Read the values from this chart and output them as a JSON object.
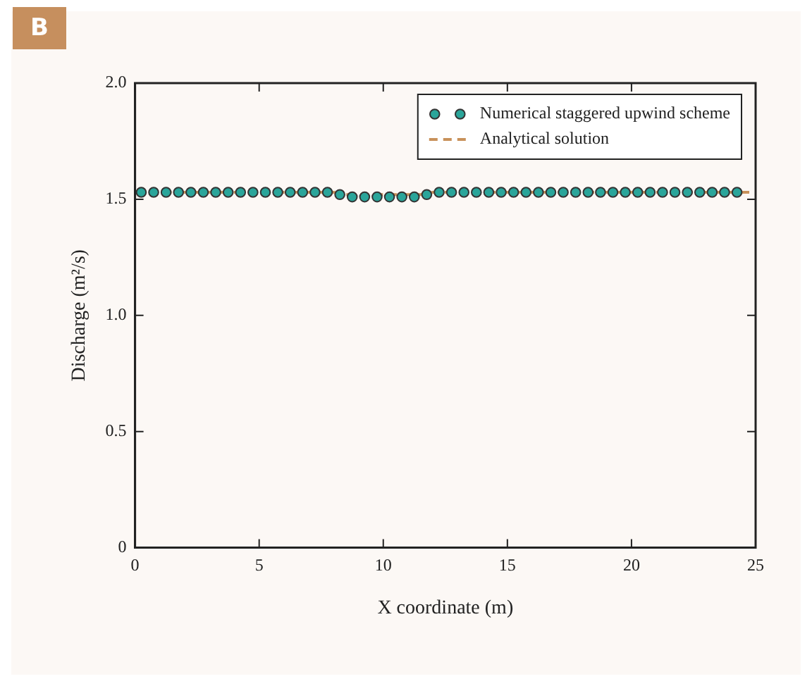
{
  "chart_data": {
    "type": "scatter",
    "xlabel": "X coordinate (m)",
    "ylabel": "Discharge (m²/s)",
    "annotations": [
      "B"
    ],
    "xlim": [
      0,
      25
    ],
    "xticks": [
      0,
      5,
      10,
      15,
      20,
      25
    ],
    "ylim": [
      0,
      2
    ],
    "yticks": [
      0,
      {
        "value": 0.5,
        "label": "0.5"
      },
      {
        "value": 1,
        "label": "1.0"
      },
      {
        "value": 1.5,
        "label": "1.5"
      },
      {
        "value": 2,
        "label": "2.0"
      }
    ],
    "grid": false,
    "legend": "top right",
    "series": [
      {
        "name": "Numerical staggered upwind scheme",
        "type": "scatter",
        "marker": "circle",
        "color": "#2aa59a",
        "x": [
          0.25,
          0.75,
          1.25,
          1.75,
          2.25,
          2.75,
          3.25,
          3.75,
          4.25,
          4.75,
          5.25,
          5.75,
          6.25,
          6.75,
          7.25,
          7.75,
          8.25,
          8.75,
          9.25,
          9.75,
          10.25,
          10.75,
          11.25,
          11.75,
          12.25,
          12.75,
          13.25,
          13.75,
          14.25,
          14.75,
          15.25,
          15.75,
          16.25,
          16.75,
          17.25,
          17.75,
          18.25,
          18.75,
          19.25,
          19.75,
          20.25,
          20.75,
          21.25,
          21.75,
          22.25,
          22.75,
          23.25,
          23.75,
          24.25
        ],
        "values": [
          1.53,
          1.53,
          1.53,
          1.53,
          1.53,
          1.53,
          1.53,
          1.53,
          1.53,
          1.53,
          1.53,
          1.53,
          1.53,
          1.53,
          1.53,
          1.53,
          1.52,
          1.51,
          1.51,
          1.51,
          1.51,
          1.51,
          1.51,
          1.52,
          1.53,
          1.53,
          1.53,
          1.53,
          1.53,
          1.53,
          1.53,
          1.53,
          1.53,
          1.53,
          1.53,
          1.53,
          1.53,
          1.53,
          1.53,
          1.53,
          1.53,
          1.53,
          1.53,
          1.53,
          1.53,
          1.53,
          1.53,
          1.53,
          1.53
        ]
      },
      {
        "name": "Analytical solution",
        "type": "line",
        "marker": "none",
        "line_style": "dashed",
        "color": "#c8915a",
        "x": [
          0,
          8,
          8.5,
          11.5,
          12,
          25
        ],
        "values": [
          1.53,
          1.53,
          1.52,
          1.52,
          1.53,
          1.53
        ]
      }
    ]
  }
}
